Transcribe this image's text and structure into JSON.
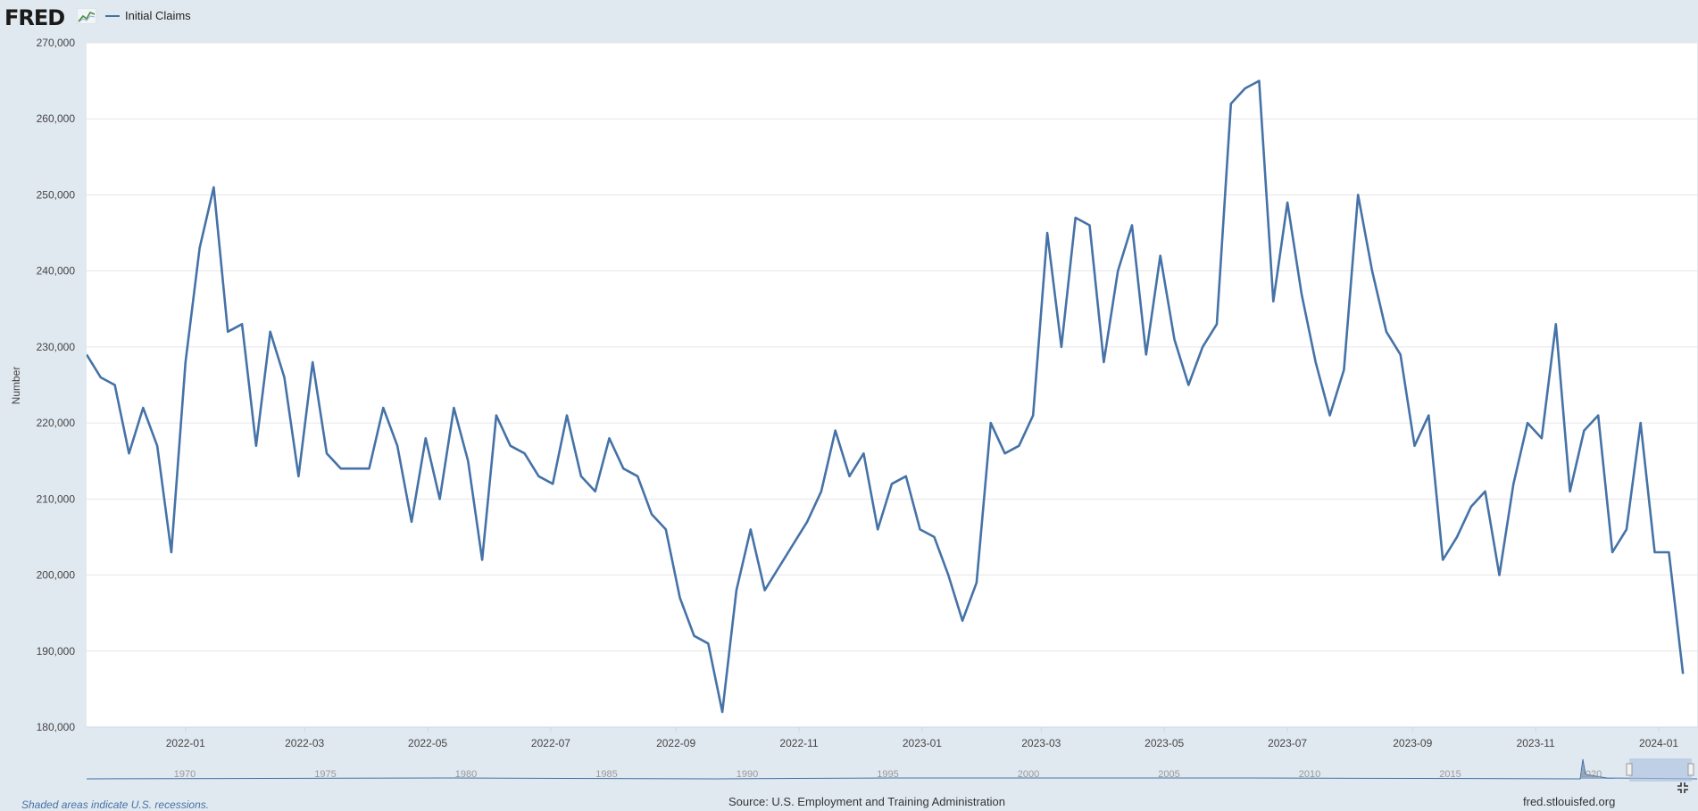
{
  "header": {
    "logo": "FRED",
    "logo_icon": "line-chart-icon",
    "legend_label": "Initial Claims"
  },
  "footer": {
    "recession_note": "Shaded areas indicate U.S. recessions.",
    "source": "Source: U.S. Employment and Training Administration",
    "site": "fred.stlouisfed.org"
  },
  "navigator": {
    "year_labels": [
      "1970",
      "1975",
      "1980",
      "1985",
      "1990",
      "1995",
      "2000",
      "2005",
      "2010",
      "2015",
      "2020"
    ]
  },
  "colors": {
    "series": "#4572a7",
    "background": "#e1e9f0",
    "plot_background": "#ffffff",
    "grid": "#e6e6e6"
  },
  "chart_data": {
    "type": "line",
    "title": "",
    "xlabel": "",
    "ylabel": "Number",
    "ylim": [
      180000,
      270000
    ],
    "yticks": [
      180000,
      190000,
      200000,
      210000,
      220000,
      230000,
      240000,
      250000,
      260000,
      270000
    ],
    "ytick_labels": [
      "180,000",
      "190,000",
      "200,000",
      "210,000",
      "220,000",
      "230,000",
      "240,000",
      "250,000",
      "260,000",
      "270,000"
    ],
    "xlim": [
      "2021-11-13",
      "2024-01-20"
    ],
    "xtick_labels": [
      "2022-01",
      "2022-03",
      "2022-05",
      "2022-07",
      "2022-09",
      "2022-11",
      "2023-01",
      "2023-03",
      "2023-05",
      "2023-07",
      "2023-09",
      "2023-11",
      "2024-01"
    ],
    "legend": "top-left",
    "grid": true,
    "series": [
      {
        "name": "Initial Claims",
        "start_date": "2021-11-13",
        "step_days": 7,
        "values": [
          229000,
          226000,
          225000,
          216000,
          222000,
          217000,
          203000,
          228000,
          243000,
          251000,
          232000,
          233000,
          217000,
          232000,
          226000,
          213000,
          228000,
          216000,
          214000,
          214000,
          214000,
          222000,
          217000,
          207000,
          218000,
          210000,
          222000,
          215000,
          202000,
          221000,
          217000,
          216000,
          213000,
          212000,
          221000,
          213000,
          211000,
          218000,
          214000,
          213000,
          208000,
          206000,
          197000,
          192000,
          191000,
          182000,
          198000,
          206000,
          198000,
          201000,
          204000,
          207000,
          211000,
          219000,
          213000,
          216000,
          206000,
          212000,
          213000,
          206000,
          205000,
          200000,
          194000,
          199000,
          220000,
          216000,
          217000,
          221000,
          245000,
          230000,
          247000,
          246000,
          228000,
          240000,
          246000,
          229000,
          242000,
          231000,
          225000,
          230000,
          233000,
          262000,
          264000,
          265000,
          236000,
          249000,
          237000,
          228000,
          221000,
          227000,
          250000,
          240000,
          232000,
          229000,
          217000,
          221000,
          202000,
          205000,
          209000,
          211000,
          200000,
          212000,
          220000,
          218000,
          233000,
          211000,
          219000,
          221000,
          203000,
          206000,
          220000,
          203000,
          203000,
          187000
        ]
      }
    ]
  }
}
